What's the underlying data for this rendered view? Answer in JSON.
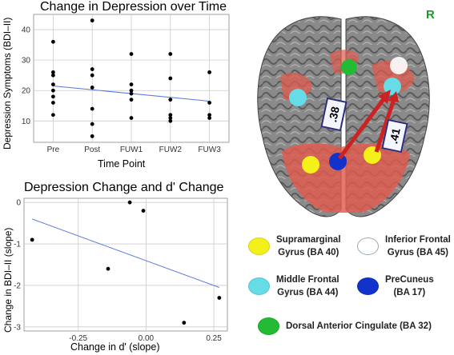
{
  "chart_data": [
    {
      "type": "scatter",
      "title": "Change in Depression over Time",
      "xlabel": "Time Point",
      "ylabel": "Depression Symptoms (BDI–II)",
      "categories": [
        "Pre",
        "Post",
        "FUW1",
        "FUW2",
        "FUW3"
      ],
      "y_ticks": [
        10,
        20,
        30,
        40
      ],
      "ylim": [
        3,
        45
      ],
      "grid": true,
      "points": [
        {
          "x": "Pre",
          "y": 36
        },
        {
          "x": "Pre",
          "y": 26
        },
        {
          "x": "Pre",
          "y": 25
        },
        {
          "x": "Pre",
          "y": 22
        },
        {
          "x": "Pre",
          "y": 20
        },
        {
          "x": "Pre",
          "y": 18
        },
        {
          "x": "Pre",
          "y": 16
        },
        {
          "x": "Pre",
          "y": 12
        },
        {
          "x": "Post",
          "y": 43
        },
        {
          "x": "Post",
          "y": 27
        },
        {
          "x": "Post",
          "y": 25
        },
        {
          "x": "Post",
          "y": 21
        },
        {
          "x": "Post",
          "y": 14
        },
        {
          "x": "Post",
          "y": 9
        },
        {
          "x": "Post",
          "y": 5
        },
        {
          "x": "FUW1",
          "y": 32
        },
        {
          "x": "FUW1",
          "y": 22
        },
        {
          "x": "FUW1",
          "y": 20
        },
        {
          "x": "FUW1",
          "y": 19
        },
        {
          "x": "FUW1",
          "y": 17
        },
        {
          "x": "FUW1",
          "y": 11
        },
        {
          "x": "FUW2",
          "y": 32
        },
        {
          "x": "FUW2",
          "y": 24
        },
        {
          "x": "FUW2",
          "y": 17
        },
        {
          "x": "FUW2",
          "y": 12
        },
        {
          "x": "FUW2",
          "y": 11
        },
        {
          "x": "FUW2",
          "y": 10
        },
        {
          "x": "FUW3",
          "y": 26
        },
        {
          "x": "FUW3",
          "y": 16
        },
        {
          "x": "FUW3",
          "y": 12
        },
        {
          "x": "FUW3",
          "y": 11
        }
      ],
      "trend_line": {
        "start": {
          "x": "Pre",
          "y": 21.5
        },
        "end": {
          "x": "FUW3",
          "y": 16.5
        },
        "color": "#5577dd"
      }
    },
    {
      "type": "scatter",
      "title": "Depression Change and d' Change",
      "xlabel": "Change in d' (slope)",
      "ylabel": "Change in BDI–II (slope)",
      "x_ticks": [
        -0.25,
        0.0,
        0.25
      ],
      "x_tick_labels": [
        "-0.25",
        "0.00",
        "0.25"
      ],
      "y_ticks": [
        0,
        -1,
        -2,
        -3
      ],
      "xlim": [
        -0.45,
        0.3
      ],
      "ylim": [
        -3.1,
        0.1
      ],
      "grid": true,
      "points": [
        {
          "x": -0.42,
          "y": -0.9
        },
        {
          "x": -0.14,
          "y": -1.6
        },
        {
          "x": -0.06,
          "y": 0.0
        },
        {
          "x": -0.01,
          "y": -0.2
        },
        {
          "x": 0.14,
          "y": -2.9
        },
        {
          "x": 0.27,
          "y": -2.3
        }
      ],
      "trend_line": {
        "start": {
          "x": -0.42,
          "y": -0.4
        },
        "end": {
          "x": 0.27,
          "y": -2.05
        },
        "color": "#5577dd"
      }
    }
  ],
  "brain": {
    "hemisphere_label": "R",
    "correlations": [
      ".38",
      ".41"
    ],
    "legend": [
      {
        "label": "Supramarginal\nGyrus (BA 40)",
        "color": "#f4f01a"
      },
      {
        "label": "Inferior Frontal\nGyrus (BA 45)",
        "color": "#ffffff"
      },
      {
        "label": "Middle Frontal\nGyrus (BA 44)",
        "color": "#66dde6"
      },
      {
        "label": "PreCuneus\n(BA 17)",
        "color": "#1133cc"
      },
      {
        "label": "Dorsal Anterior Cingulate (BA 32)",
        "color": "#22bb33"
      }
    ]
  }
}
